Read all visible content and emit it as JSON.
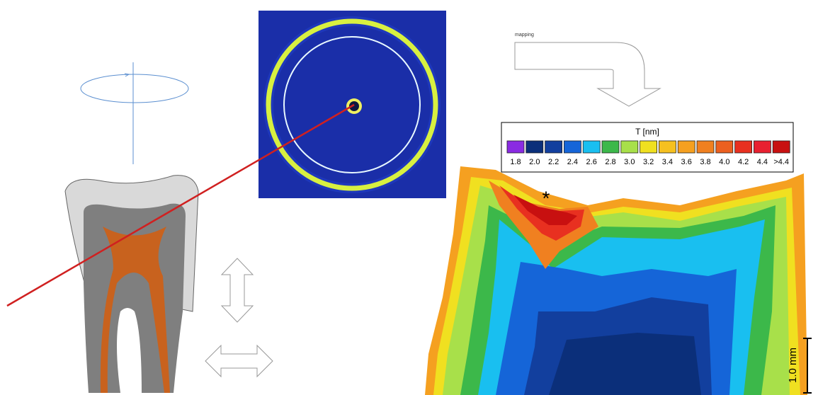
{
  "mapping_label": "mapping",
  "legend": {
    "title": "T [nm]",
    "items": [
      {
        "label": "1.8",
        "color": "#8a2be2"
      },
      {
        "label": "2.0",
        "color": "#0b2f7a"
      },
      {
        "label": "2.2",
        "color": "#123f9e"
      },
      {
        "label": "2.4",
        "color": "#1565d8"
      },
      {
        "label": "2.6",
        "color": "#19bff0"
      },
      {
        "label": "2.8",
        "color": "#3cb84a"
      },
      {
        "label": "3.0",
        "color": "#a8e04a"
      },
      {
        "label": "3.2",
        "color": "#f0e020"
      },
      {
        "label": "3.4",
        "color": "#f5c020"
      },
      {
        "label": "3.6",
        "color": "#f5a020"
      },
      {
        "label": "3.8",
        "color": "#f08020"
      },
      {
        "label": "4.0",
        "color": "#ec6020"
      },
      {
        "label": "4.2",
        "color": "#e83020"
      },
      {
        "label": "4.4",
        "color": "#e82030"
      },
      {
        "label": ">4.4",
        "color": "#c81010"
      }
    ]
  },
  "hotspot_marker": "*",
  "scale_bar": "1.0 mm"
}
